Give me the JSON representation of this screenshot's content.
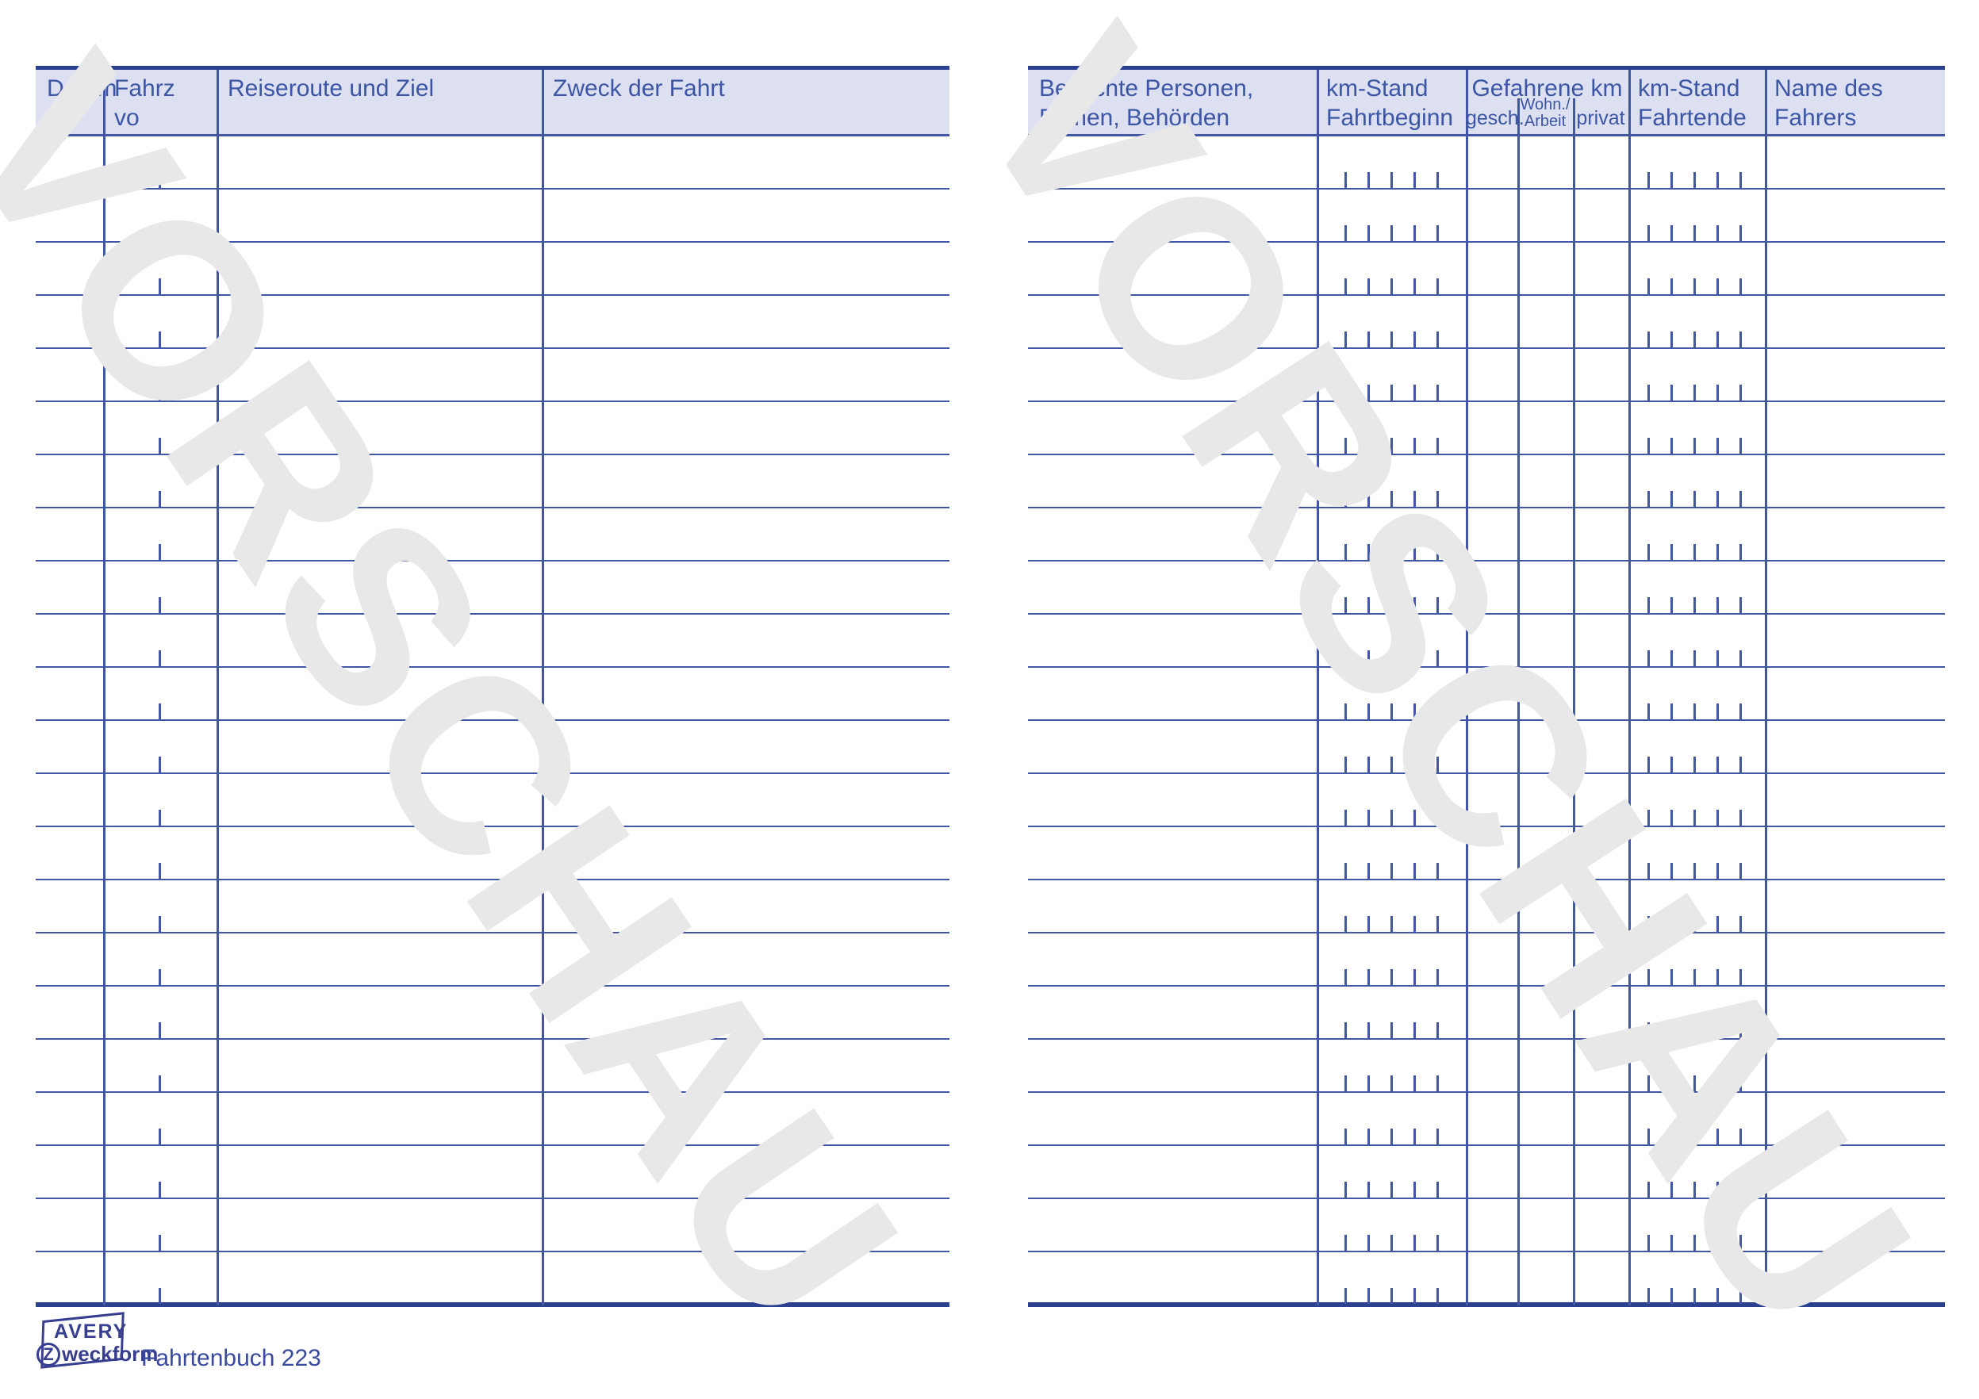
{
  "watermark": {
    "text": "VORSCHAU"
  },
  "table": {
    "rows": 22,
    "km_digit_ticks_per_field": 5
  },
  "left_page": {
    "columns": {
      "datum": "Datum",
      "fahrzeit_line1": "Fahrz",
      "fahrzeit_line2": "vo",
      "reiseroute": "Reiseroute und Ziel",
      "zweck": "Zweck der Fahrt"
    }
  },
  "right_page": {
    "columns": {
      "besuchte_line1": "Besuchte Personen,",
      "besuchte_line2": "Firmen, Behörden",
      "km_beginn_line1": "km-Stand",
      "km_beginn_line2": "Fahrtbeginn",
      "gefahrene_group": "Gefahrene km",
      "gesch": "gesch.",
      "wohn_line1": "Wohn./",
      "wohn_line2": "Arbeit",
      "privat": "privat",
      "km_ende_line1": "km-Stand",
      "km_ende_line2": "Fahrtende",
      "name_line1": "Name des",
      "name_line2": "Fahrers"
    }
  },
  "footer": {
    "brand_line1": "AVERY",
    "brand_z": "Z",
    "brand_rest": "weckform",
    "product": "Fahrtenbuch 223"
  },
  "colors": {
    "header_fill": "#dce0f1",
    "grid_line": "#4156a4",
    "heavy_line": "#2b4190",
    "header_text": "#3c55a5",
    "watermark": "#e8e8e8",
    "logo": "#383e8f"
  }
}
